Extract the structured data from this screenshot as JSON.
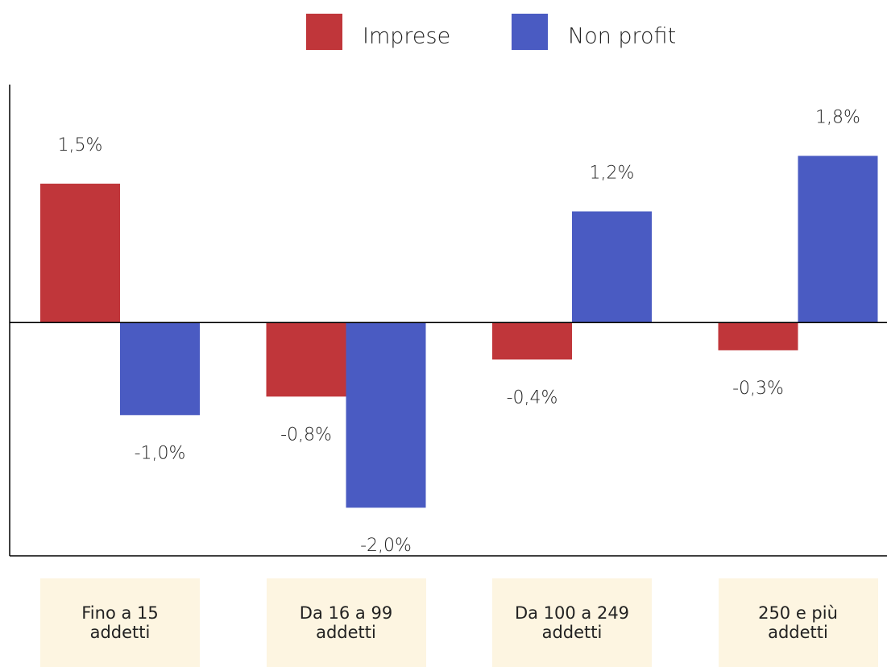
{
  "chart_data": {
    "type": "bar",
    "categories": [
      "Fino a 15\naddetti",
      "Da 16 a 99\naddetti",
      "Da 100 a 249\naddetti",
      "250 e più\naddetti"
    ],
    "series": [
      {
        "name": "Imprese",
        "color": "#c0363a",
        "values": [
          1.5,
          -0.8,
          -0.4,
          -0.3
        ],
        "value_labels": [
          "1,5%",
          "-0,8%",
          "-0,4%",
          "-0,3%"
        ]
      },
      {
        "name": "Non profit",
        "color": "#4a5bc2",
        "values": [
          -1.0,
          -2.0,
          1.2,
          1.8
        ],
        "value_labels": [
          "-1,0%",
          "-2,0%",
          "1,2%",
          "1,8%"
        ]
      }
    ],
    "ylim": [
      -2.52,
      2.57
    ],
    "legend": "top"
  }
}
